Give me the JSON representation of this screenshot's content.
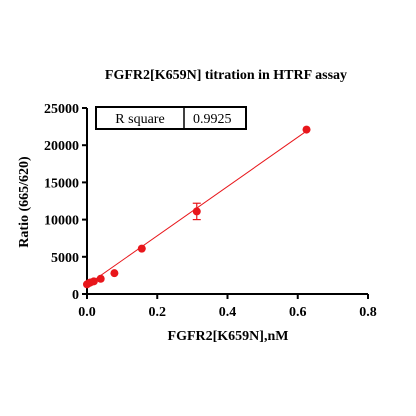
{
  "chart_data": {
    "type": "scatter",
    "title": "FGFR2[K659N] titration in HTRF assay",
    "xlabel": "FGFR2[K659N],nM",
    "ylabel": "Ratio (665/620)",
    "xlim": [
      0,
      0.8
    ],
    "ylim": [
      0,
      25000
    ],
    "xticks": [
      0.0,
      0.2,
      0.4,
      0.6,
      0.8
    ],
    "xtick_labels": [
      "0.0",
      "0.2",
      "0.4",
      "0.6",
      "0.8"
    ],
    "yticks": [
      0,
      5000,
      10000,
      15000,
      20000,
      25000
    ],
    "ytick_labels": [
      "0",
      "5000",
      "10000",
      "15000",
      "20000",
      "25000"
    ],
    "grid": false,
    "series": [
      {
        "color": "#e8161b",
        "points": [
          {
            "x": 0.0,
            "y": 1300
          },
          {
            "x": 0.0049,
            "y": 1450
          },
          {
            "x": 0.0098,
            "y": 1550
          },
          {
            "x": 0.0195,
            "y": 1700
          },
          {
            "x": 0.039,
            "y": 2050
          },
          {
            "x": 0.078,
            "y": 2800
          },
          {
            "x": 0.156,
            "y": 6100
          },
          {
            "x": 0.3125,
            "y": 11100,
            "err": 1100
          },
          {
            "x": 0.625,
            "y": 22100
          }
        ],
        "fit": {
          "type": "linear",
          "x": [
            0,
            0.625
          ],
          "y": [
            1200,
            21900
          ]
        }
      }
    ],
    "stats_table": {
      "label": "R square",
      "value": "0.9925"
    }
  }
}
